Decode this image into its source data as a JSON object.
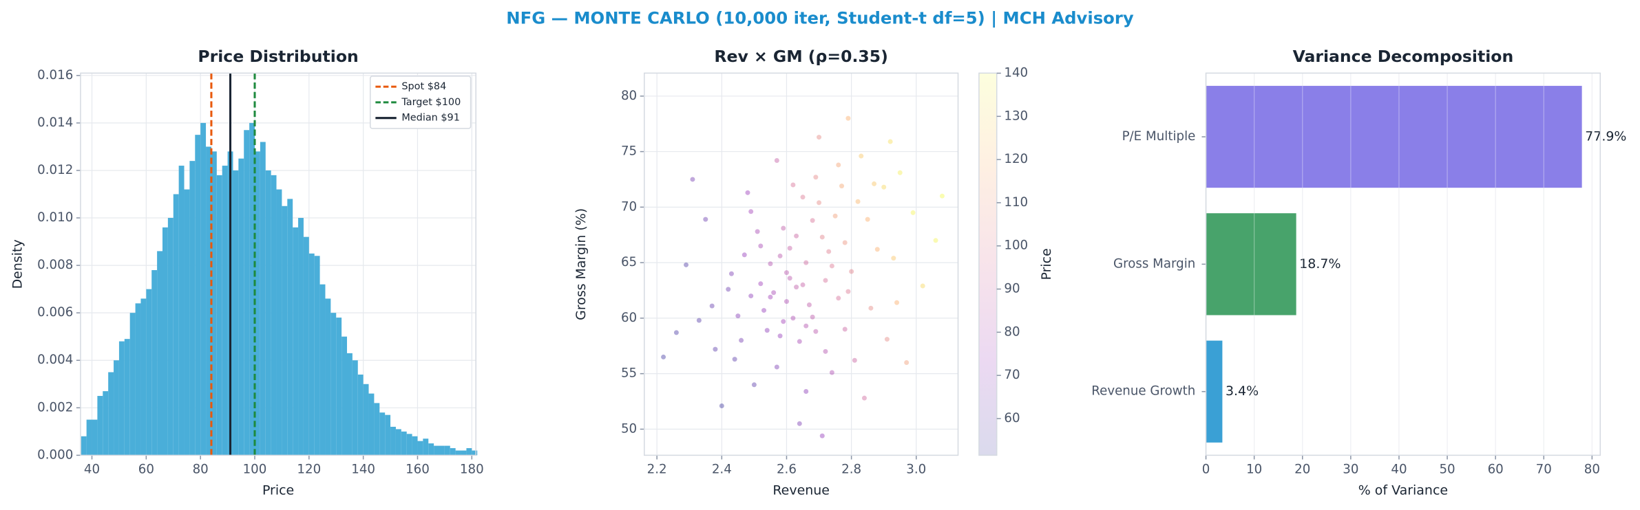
{
  "title": "NFG — MONTE CARLO (10,000 iter, Student-t df=5) | MCH Advisory",
  "chart_data": [
    {
      "type": "histogram",
      "title": "Price Distribution",
      "x_label": "Price",
      "y_label": "Density",
      "color": "#4aaed9",
      "bins": [
        36,
        38,
        40,
        42,
        44,
        46,
        48,
        50,
        52,
        54,
        56,
        58,
        60,
        62,
        64,
        66,
        68,
        70,
        72,
        74,
        76,
        78,
        80,
        82,
        84,
        86,
        88,
        90,
        92,
        94,
        96,
        98,
        100,
        102,
        104,
        106,
        108,
        110,
        112,
        114,
        116,
        118,
        120,
        122,
        124,
        126,
        128,
        130,
        132,
        134,
        136,
        138,
        140,
        142,
        144,
        146,
        148,
        150,
        152,
        154,
        156,
        158,
        160,
        162,
        164,
        166,
        168,
        170,
        172,
        174,
        176,
        178,
        180,
        182
      ],
      "values": [
        0.0008,
        0.0015,
        0.0015,
        0.0025,
        0.0027,
        0.0035,
        0.004,
        0.0048,
        0.0049,
        0.006,
        0.0064,
        0.0066,
        0.007,
        0.0078,
        0.0086,
        0.0096,
        0.01,
        0.011,
        0.0122,
        0.0112,
        0.0124,
        0.0135,
        0.014,
        0.013,
        0.0128,
        0.0118,
        0.0122,
        0.0128,
        0.012,
        0.0125,
        0.0137,
        0.014,
        0.0128,
        0.0132,
        0.012,
        0.0118,
        0.0112,
        0.0105,
        0.0108,
        0.0096,
        0.01,
        0.0092,
        0.0085,
        0.0084,
        0.0072,
        0.0066,
        0.006,
        0.0058,
        0.005,
        0.0043,
        0.004,
        0.0034,
        0.003,
        0.0026,
        0.0022,
        0.0018,
        0.0017,
        0.0012,
        0.0011,
        0.001,
        0.0009,
        0.0008,
        0.0006,
        0.0007,
        0.0005,
        0.0004,
        0.0004,
        0.0004,
        0.0003,
        0.0002,
        0.0002,
        0.0003,
        0.0002
      ],
      "reference_lines": [
        {
          "name": "Spot $84",
          "value": 84,
          "color": "#e8590c",
          "style": "dashed"
        },
        {
          "name": "Target $100",
          "value": 100,
          "color": "#1e8a3e",
          "style": "dashed"
        },
        {
          "name": "Median $91",
          "value": 91,
          "color": "#1a2533",
          "style": "solid"
        }
      ],
      "legend": "upper right",
      "xlim": [
        35.8,
        181.5
      ],
      "ylim": [
        0,
        0.0161
      ],
      "xticks": [
        40,
        60,
        80,
        100,
        120,
        140,
        160,
        180
      ],
      "yticks": [
        {
          "value": 0,
          "label": "0.000"
        },
        {
          "value": 0.002,
          "label": "0.002"
        },
        {
          "value": 0.004,
          "label": "0.004"
        },
        {
          "value": 0.006,
          "label": "0.006"
        },
        {
          "value": 0.008,
          "label": "0.008"
        },
        {
          "value": 0.01,
          "label": "0.010"
        },
        {
          "value": 0.012,
          "label": "0.012"
        },
        {
          "value": 0.014,
          "label": "0.014"
        },
        {
          "value": 0.016,
          "label": "0.016"
        }
      ],
      "grid": true
    },
    {
      "type": "scatter",
      "title": "Rev × GM (ρ=0.35)",
      "x_label": "Revenue",
      "y_label": "Gross Margin (%)",
      "colorbar_label": "Price",
      "colormap": "plasma",
      "x": [
        2.45,
        2.52,
        2.6,
        2.66,
        2.71,
        2.58,
        2.63,
        2.75,
        2.82,
        2.9,
        2.38,
        2.55,
        2.68,
        2.72,
        2.78,
        2.49,
        2.61,
        2.85,
        2.95,
        2.57,
        2.33,
        2.47,
        2.64,
        2.7,
        2.8,
        2.53,
        2.59,
        2.76,
        2.88,
        2.42,
        2.66,
        2.74,
        2.51,
        2.62,
        2.83,
        2.99,
        2.29,
        2.44,
        2.69,
        2.56,
        2.6,
        2.65,
        2.67,
        2.58,
        2.73,
        2.54,
        2.62,
        2.77,
        2.86,
        2.93,
        2.4,
        2.5,
        2.64,
        2.81,
        2.91,
        3.02,
        3.06,
        2.26,
        2.35,
        2.48,
        2.57,
        2.7,
        2.79,
        2.92,
        2.22,
        2.31,
        2.97,
        2.84,
        2.71,
        3.08,
        2.63,
        2.68,
        2.59,
        2.55,
        2.61,
        2.74,
        2.66,
        2.52,
        2.79,
        2.69,
        2.46,
        2.43,
        2.87,
        2.76,
        2.94,
        2.37,
        2.49,
        2.78,
        2.65,
        2.72
      ],
      "y": [
        60.2,
        63.1,
        61.5,
        65.0,
        67.3,
        58.4,
        62.8,
        69.2,
        70.5,
        71.8,
        57.2,
        64.9,
        60.1,
        63.4,
        66.8,
        62.0,
        66.3,
        68.9,
        73.1,
        55.6,
        59.8,
        65.7,
        57.9,
        70.4,
        64.2,
        60.7,
        68.1,
        61.8,
        66.2,
        62.6,
        53.4,
        55.1,
        67.8,
        72.0,
        74.6,
        69.5,
        64.8,
        56.3,
        58.8,
        62.3,
        64.1,
        63.0,
        61.2,
        65.6,
        66.0,
        58.9,
        60.0,
        71.9,
        60.9,
        65.4,
        52.1,
        54.0,
        50.5,
        56.2,
        58.1,
        62.9,
        67.0,
        58.7,
        68.9,
        71.3,
        74.2,
        76.3,
        78.0,
        75.9,
        56.5,
        72.5,
        56.0,
        52.8,
        49.4,
        71.0,
        67.4,
        68.8,
        59.7,
        61.9,
        63.6,
        64.7,
        59.3,
        66.5,
        62.4,
        72.7,
        58.0,
        64.0,
        72.1,
        73.8,
        61.4,
        61.1,
        69.6,
        59.0,
        70.9,
        57.0
      ],
      "price": [
        68,
        75,
        80,
        92,
        102,
        72,
        86,
        112,
        120,
        130,
        58,
        82,
        85,
        95,
        108,
        70,
        88,
        118,
        136,
        66,
        56,
        72,
        78,
        105,
        102,
        72,
        86,
        95,
        118,
        62,
        70,
        80,
        78,
        96,
        125,
        138,
        55,
        58,
        84,
        78,
        84,
        88,
        86,
        84,
        100,
        70,
        80,
        115,
        105,
        124,
        52,
        58,
        66,
        90,
        105,
        130,
        138,
        54,
        62,
        74,
        88,
        105,
        118,
        132,
        53,
        64,
        112,
        92,
        72,
        140,
        90,
        96,
        76,
        76,
        84,
        98,
        82,
        78,
        98,
        104,
        64,
        66,
        124,
        114,
        118,
        60,
        76,
        90,
        98,
        82
      ],
      "xlim": [
        2.161,
        3.129
      ],
      "ylim": [
        47.65,
        82.07
      ],
      "clim": [
        51.5,
        140.02
      ],
      "xticks": [
        2.2,
        2.4,
        2.6,
        2.8,
        {
          "value": 3,
          "label": "3.0"
        }
      ],
      "yticks": [
        50,
        55,
        60,
        65,
        70,
        75,
        80
      ],
      "cticks": [
        60,
        70,
        80,
        90,
        100,
        110,
        120,
        130,
        140
      ],
      "grid": true
    },
    {
      "type": "barh",
      "title": "Variance Decomposition",
      "x_label": "% of Variance",
      "categories": [
        "P/E Multiple",
        "Gross Margin",
        "Revenue Growth"
      ],
      "values": [
        77.9,
        18.7,
        3.4
      ],
      "value_labels": [
        "77.9%",
        "18.7%",
        "3.4%"
      ],
      "colors": [
        "#8a7fe8",
        "#48a36b",
        "#3aa0d5"
      ],
      "xlim": [
        0,
        81.7
      ],
      "xticks": [
        0,
        10,
        20,
        30,
        40,
        50,
        60,
        70,
        80
      ],
      "grid": true
    }
  ]
}
